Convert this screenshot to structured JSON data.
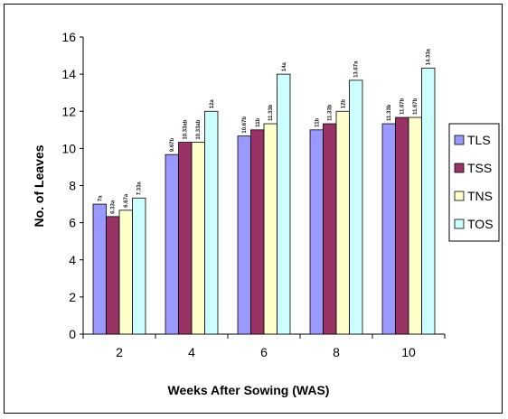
{
  "chart_data": {
    "type": "bar",
    "title": "",
    "xlabel": "Weeks After Sowing (WAS)",
    "ylabel": "No. of Leaves",
    "categories": [
      "2",
      "4",
      "6",
      "8",
      "10"
    ],
    "ylim": [
      0,
      16
    ],
    "yticks": [
      "0",
      "2",
      "4",
      "6",
      "8",
      "10",
      "12",
      "14",
      "16"
    ],
    "grid": false,
    "legend_position": "right",
    "series": [
      {
        "name": "TLS",
        "color": "#9999ff",
        "values": [
          7.0,
          9.67,
          10.67,
          11.0,
          11.33
        ],
        "labels": [
          "7a",
          "9.67b",
          "10.67b",
          "11b",
          "11.33b"
        ]
      },
      {
        "name": "TSS",
        "color": "#993366",
        "values": [
          6.33,
          10.33,
          11.0,
          11.33,
          11.67
        ],
        "labels": [
          "6.33a",
          "10.33ab",
          "11b",
          "11.33b",
          "11.67b"
        ]
      },
      {
        "name": "TNS",
        "color": "#ffffcc",
        "values": [
          6.67,
          10.33,
          11.33,
          12.0,
          11.67
        ],
        "labels": [
          "6.67a",
          "10.33ab",
          "11.33b",
          "12b",
          "11.67b"
        ]
      },
      {
        "name": "TOS",
        "color": "#ccffff",
        "values": [
          7.33,
          12.0,
          14.0,
          13.67,
          14.33
        ],
        "labels": [
          "7.33a",
          "12a",
          "14a",
          "13.67a",
          "14.33a"
        ]
      }
    ]
  }
}
